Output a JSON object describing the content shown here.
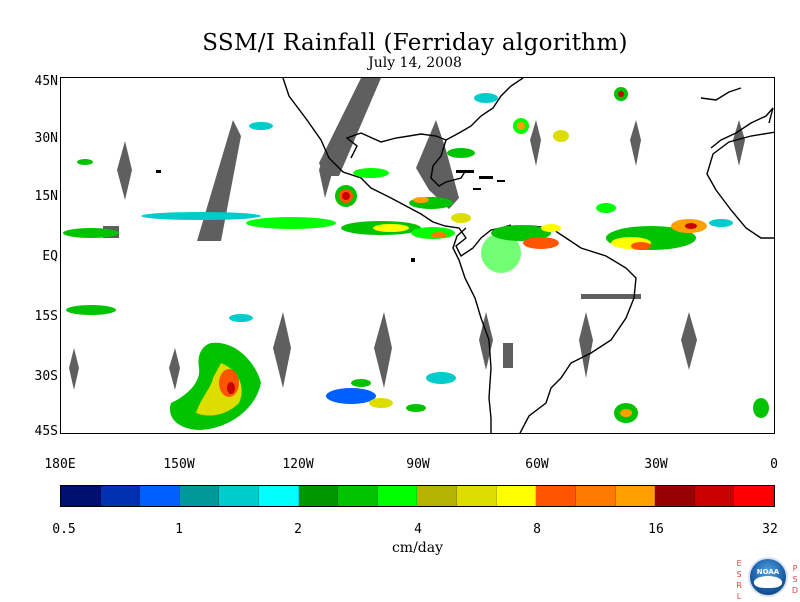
{
  "title": "SSM/I Rainfall (Ferriday algorithm)",
  "date": "July 14, 2008",
  "lat_labels": [
    "45N",
    "30N",
    "15N",
    "EQ",
    "15S",
    "30S",
    "45S"
  ],
  "lon_labels": [
    "180E",
    "150W",
    "120W",
    "90W",
    "60W",
    "30W",
    "0"
  ],
  "colorbar": {
    "colors": [
      "#001070",
      "#0030b0",
      "#0060ff",
      "#00999a",
      "#00cccc",
      "#00ffff",
      "#009600",
      "#00c300",
      "#00ff00",
      "#b4b400",
      "#dddd00",
      "#ffff00",
      "#ff5500",
      "#ff7a00",
      "#ffa000",
      "#960000",
      "#c80000",
      "#ff0000"
    ],
    "tick_labels": [
      "0.5",
      "1",
      "2",
      "4",
      "8",
      "16",
      "32"
    ],
    "units": "cm/day"
  },
  "logo": {
    "left_letters": "ESRL",
    "right_letters": "PSD",
    "circle_text": "NOAA"
  },
  "map_colors": {
    "coastline": "#000000",
    "no_data_swath": "#5f5f5f",
    "background": "#ffffff"
  }
}
